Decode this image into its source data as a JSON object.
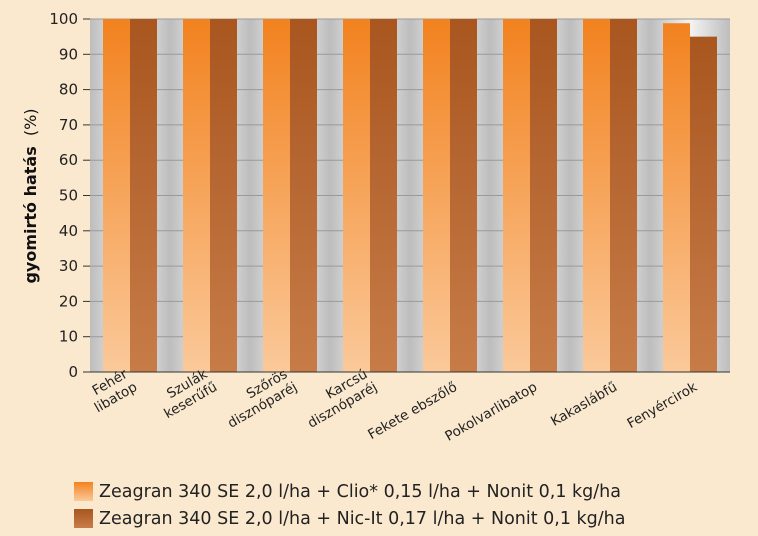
{
  "chart_data": {
    "type": "bar",
    "ylabel_bold": "gyomirtó hatás",
    "ylabel_unit": "(%)",
    "ylim": [
      0,
      100
    ],
    "yticks": [
      0,
      10,
      20,
      30,
      40,
      50,
      60,
      70,
      80,
      90,
      100
    ],
    "grid": "horizontal",
    "legend_position": "bottom",
    "categories": [
      [
        "Fehér",
        "libatop"
      ],
      [
        "Szulák",
        "keserűfű"
      ],
      [
        "Szőrös",
        "disznóparéj"
      ],
      [
        "Karcsú",
        "disznóparéj"
      ],
      [
        "Fekete ebszőlő"
      ],
      [
        "Pokolvarlibatop"
      ],
      [
        "Kakaslábfű"
      ],
      [
        "Fenyércirok"
      ]
    ],
    "series": [
      {
        "name": "Zeagran 340 SE 2,0 l/ha + Clio* 0,15 l/ha + Nonit 0,1 kg/ha",
        "color": "#f39a45",
        "values": [
          100,
          100,
          100,
          100,
          100,
          100,
          100,
          98.8
        ]
      },
      {
        "name": "Zeagran 340 SE 2,0 l/ha + Nic-It 0,17 l/ha + Nonit 0,1 kg/ha",
        "color": "#b3602b",
        "values": [
          100,
          100,
          100,
          100,
          100,
          100,
          100,
          95
        ]
      }
    ]
  }
}
